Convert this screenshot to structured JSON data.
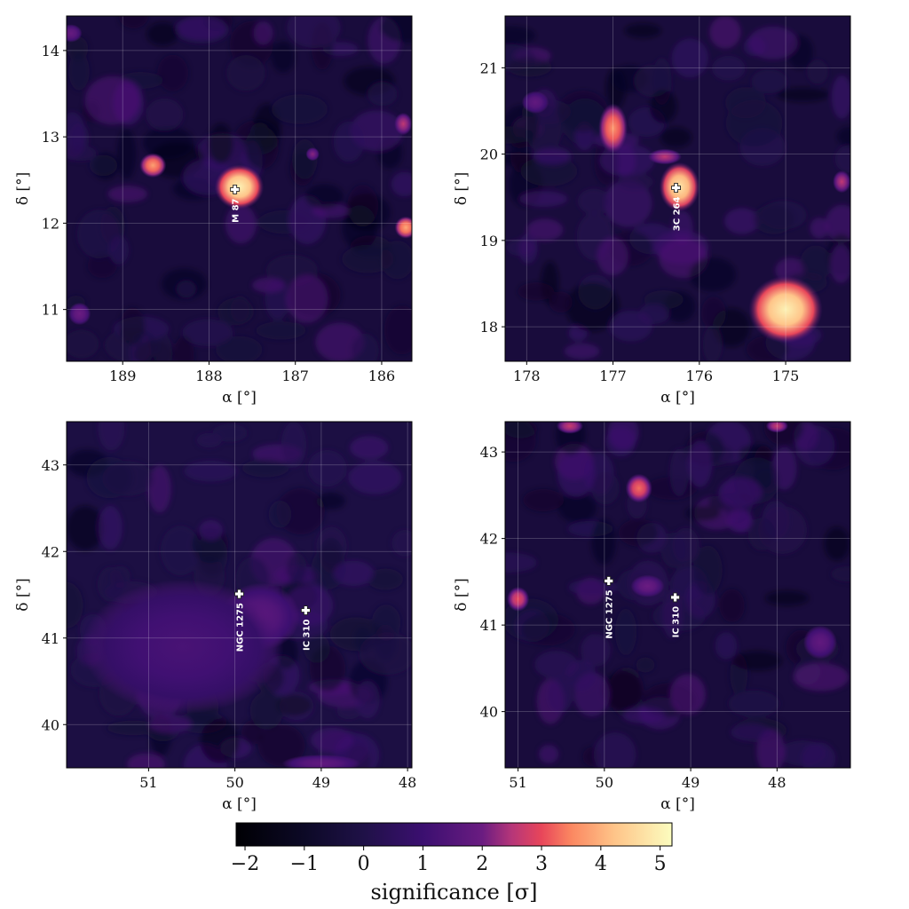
{
  "chart_data": [
    {
      "type": "heatmap",
      "panel": "top-left",
      "xlabel": "α [°]",
      "ylabel": "δ [°]",
      "xlim": [
        189.65,
        185.65
      ],
      "ylim": [
        10.4,
        14.4
      ],
      "xticks": [
        189,
        188,
        187,
        186
      ],
      "yticks": [
        11,
        12,
        13,
        14
      ],
      "grid": true,
      "sources": [
        {
          "name": "M 87",
          "ra": 187.7,
          "dec": 12.39
        }
      ],
      "blobs": [
        {
          "ra": 187.65,
          "dec": 12.42,
          "rx": 0.22,
          "ry": 0.2,
          "sigma": 5.0
        },
        {
          "ra": 188.65,
          "dec": 12.67,
          "rx": 0.12,
          "ry": 0.11,
          "sigma": 3.8
        },
        {
          "ra": 185.72,
          "dec": 11.95,
          "rx": 0.1,
          "ry": 0.1,
          "sigma": 3.9
        },
        {
          "ra": 185.75,
          "dec": 13.15,
          "rx": 0.08,
          "ry": 0.1,
          "sigma": 2.6
        },
        {
          "ra": 186.8,
          "dec": 12.8,
          "rx": 0.06,
          "ry": 0.06,
          "sigma": 2.2
        },
        {
          "ra": 189.5,
          "dec": 10.95,
          "rx": 0.1,
          "ry": 0.1,
          "sigma": 2.0
        },
        {
          "ra": 189.6,
          "dec": 14.2,
          "rx": 0.1,
          "ry": 0.08,
          "sigma": 1.9
        }
      ]
    },
    {
      "type": "heatmap",
      "panel": "top-right",
      "xlabel": "α [°]",
      "ylabel": "δ [°]",
      "xlim": [
        178.25,
        174.25
      ],
      "ylim": [
        17.6,
        21.6
      ],
      "xticks": [
        178,
        177,
        176,
        175
      ],
      "yticks": [
        18,
        19,
        20,
        21
      ],
      "grid": true,
      "sources": [
        {
          "name": "3C 264",
          "ra": 176.27,
          "dec": 19.61
        }
      ],
      "blobs": [
        {
          "ra": 176.23,
          "dec": 19.62,
          "rx": 0.18,
          "ry": 0.22,
          "sigma": 4.8
        },
        {
          "ra": 175.0,
          "dec": 18.2,
          "rx": 0.33,
          "ry": 0.3,
          "sigma": 5.0
        },
        {
          "ra": 177.0,
          "dec": 20.3,
          "rx": 0.13,
          "ry": 0.22,
          "sigma": 3.7
        },
        {
          "ra": 176.4,
          "dec": 19.97,
          "rx": 0.15,
          "ry": 0.07,
          "sigma": 2.6
        },
        {
          "ra": 174.35,
          "dec": 19.68,
          "rx": 0.08,
          "ry": 0.1,
          "sigma": 2.6
        },
        {
          "ra": 177.9,
          "dec": 20.6,
          "rx": 0.12,
          "ry": 0.1,
          "sigma": 1.8
        }
      ]
    },
    {
      "type": "heatmap",
      "panel": "bottom-left",
      "xlabel": "α [°]",
      "ylabel": "δ [°]",
      "xlim": [
        51.95,
        47.95
      ],
      "ylim": [
        39.5,
        43.5
      ],
      "xticks": [
        51,
        50,
        49,
        48
      ],
      "yticks": [
        40,
        41,
        42,
        43
      ],
      "grid": true,
      "sources": [
        {
          "name": "NGC 1275",
          "ra": 49.95,
          "dec": 41.51
        },
        {
          "name": "IC 310",
          "ra": 49.18,
          "dec": 41.32
        }
      ],
      "blobs": [
        {
          "ra": 49.7,
          "dec": 41.25,
          "rx": 0.35,
          "ry": 0.3,
          "sigma": 1.7
        },
        {
          "ra": 50.6,
          "dec": 40.9,
          "rx": 0.9,
          "ry": 0.6,
          "sigma": 1.3
        },
        {
          "ra": 49.0,
          "dec": 39.55,
          "rx": 0.35,
          "ry": 0.08,
          "sigma": 1.8
        }
      ]
    },
    {
      "type": "heatmap",
      "panel": "bottom-right",
      "xlabel": "α [°]",
      "ylabel": "δ [°]",
      "xlim": [
        51.15,
        47.15
      ],
      "ylim": [
        39.35,
        43.35
      ],
      "xticks": [
        51,
        50,
        49,
        48
      ],
      "yticks": [
        40,
        41,
        42,
        43
      ],
      "grid": true,
      "sources": [
        {
          "name": "NGC 1275",
          "ra": 49.95,
          "dec": 41.51
        },
        {
          "name": "IC 310",
          "ra": 49.18,
          "dec": 41.32
        }
      ],
      "blobs": [
        {
          "ra": 49.6,
          "dec": 42.58,
          "rx": 0.12,
          "ry": 0.13,
          "sigma": 3.3
        },
        {
          "ra": 51.0,
          "dec": 41.3,
          "rx": 0.1,
          "ry": 0.11,
          "sigma": 3.0
        },
        {
          "ra": 50.4,
          "dec": 43.3,
          "rx": 0.12,
          "ry": 0.07,
          "sigma": 2.7
        },
        {
          "ra": 48.0,
          "dec": 43.3,
          "rx": 0.1,
          "ry": 0.06,
          "sigma": 2.7
        },
        {
          "ra": 49.5,
          "dec": 41.45,
          "rx": 0.15,
          "ry": 0.1,
          "sigma": 2.0
        },
        {
          "ra": 47.5,
          "dec": 40.8,
          "rx": 0.15,
          "ry": 0.15,
          "sigma": 1.8
        }
      ]
    }
  ],
  "colorbar": {
    "label": "significance [σ]",
    "range": [
      -2.15,
      5.2
    ],
    "ticks": [
      -2,
      -1,
      0,
      1,
      2,
      3,
      4,
      5
    ],
    "tick_labels": [
      "−2",
      "−1",
      "0",
      "1",
      "2",
      "3",
      "4",
      "5"
    ],
    "colormap": "magma",
    "stops": [
      {
        "v": -2.15,
        "color": "#000004"
      },
      {
        "v": -1.0,
        "color": "#0c0926"
      },
      {
        "v": 0.0,
        "color": "#1f1147"
      },
      {
        "v": 1.0,
        "color": "#3b0f70"
      },
      {
        "v": 2.0,
        "color": "#6a1c81"
      },
      {
        "v": 2.5,
        "color": "#b63679"
      },
      {
        "v": 3.0,
        "color": "#e8465a"
      },
      {
        "v": 3.5,
        "color": "#fb8761"
      },
      {
        "v": 4.2,
        "color": "#fec287"
      },
      {
        "v": 5.2,
        "color": "#fcfdbf"
      }
    ]
  }
}
